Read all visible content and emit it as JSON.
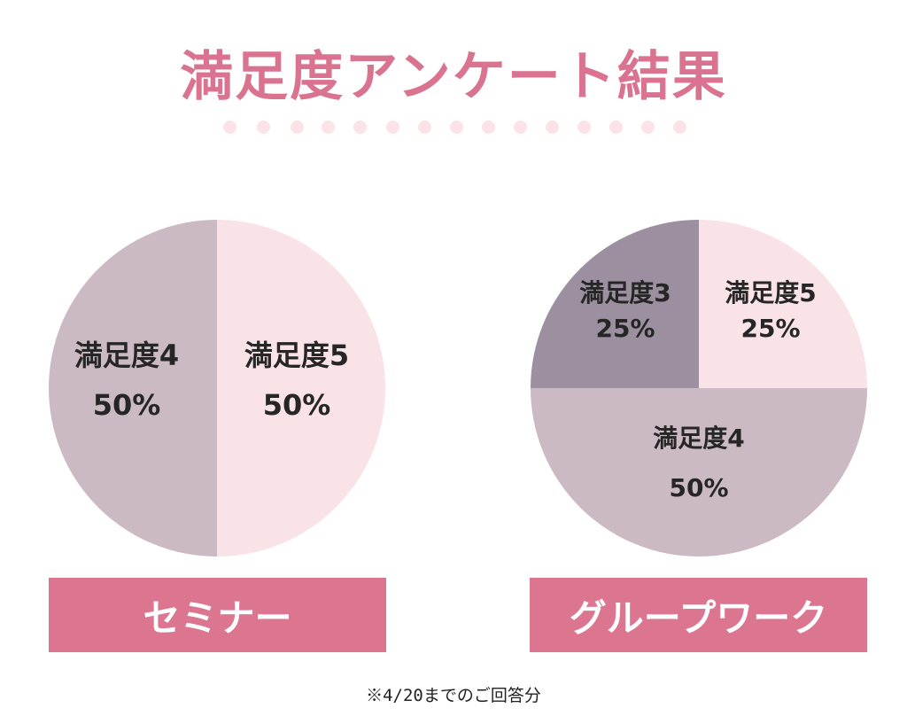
{
  "title": "満足度アンケート結果",
  "footnote": "※4/20までのご回答分",
  "colors": {
    "title": "#d9738f",
    "banner": "#dc7590",
    "dots": "#fbe3e8",
    "satisfaction5": "#fae3e6",
    "satisfaction4": "#cbb9c4",
    "satisfaction3": "#9c8f9f",
    "label_text": "#262626"
  },
  "chart_data": [
    {
      "type": "pie",
      "name": "セミナー",
      "slices": [
        {
          "label": "満足度5",
          "value": 50,
          "value_label": "50%",
          "color_key": "satisfaction5"
        },
        {
          "label": "満足度4",
          "value": 50,
          "value_label": "50%",
          "color_key": "satisfaction4"
        }
      ]
    },
    {
      "type": "pie",
      "name": "グループワーク",
      "slices": [
        {
          "label": "満足度5",
          "value": 25,
          "value_label": "25%",
          "color_key": "satisfaction5"
        },
        {
          "label": "満足度4",
          "value": 50,
          "value_label": "50%",
          "color_key": "satisfaction4"
        },
        {
          "label": "満足度3",
          "value": 25,
          "value_label": "25%",
          "color_key": "satisfaction3"
        }
      ]
    }
  ]
}
